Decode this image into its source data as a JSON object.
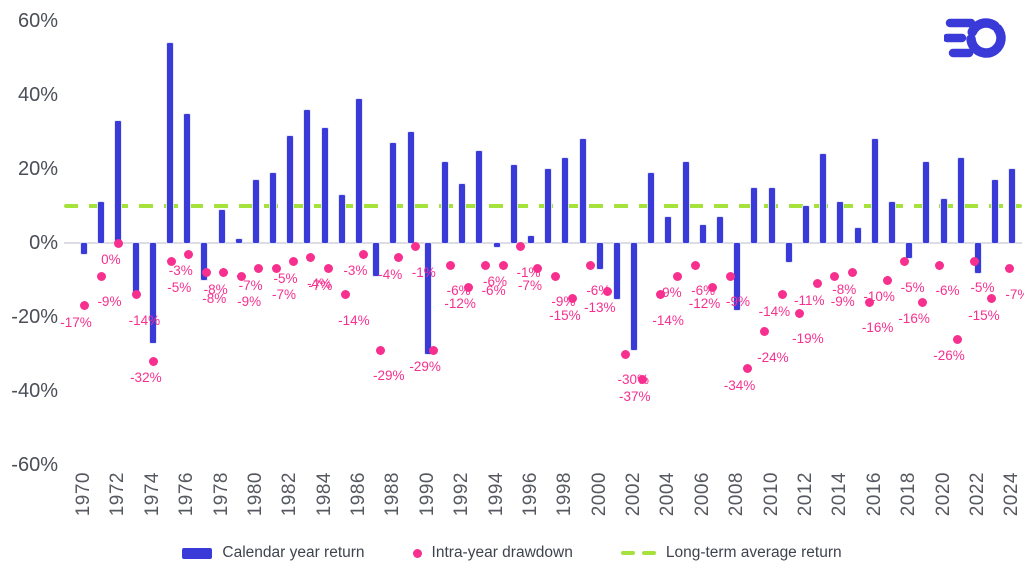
{
  "chart_data": {
    "type": "bar",
    "title": "",
    "year_start": 1970,
    "xticks": [
      "1970",
      "1972",
      "1974",
      "1976",
      "1978",
      "1980",
      "1982",
      "1984",
      "1986",
      "1988",
      "1990",
      "1992",
      "1994",
      "1996",
      "1998",
      "2000",
      "2002",
      "2004",
      "2006",
      "2008",
      "2010",
      "2012",
      "2014",
      "2016",
      "2018",
      "2020",
      "2022",
      "2024"
    ],
    "yticks": [
      "60%",
      "40%",
      "20%",
      "0%",
      "-20%",
      "-40%",
      "-60%"
    ],
    "ytick_values": [
      60,
      40,
      20,
      0,
      -20,
      -40,
      -60
    ],
    "ylim": [
      -60,
      60
    ],
    "grid": "zero-line-only",
    "legend_position": "bottom",
    "series": [
      {
        "name": "Calendar year return",
        "type": "bar",
        "color": "#3a3ad9",
        "values": [
          -3,
          11,
          33,
          -14,
          -27,
          54,
          35,
          -10,
          9,
          1,
          17,
          19,
          29,
          36,
          31,
          13,
          39,
          -9,
          27,
          30,
          -30,
          22,
          16,
          25,
          -1,
          21,
          2,
          20,
          23,
          28,
          -7,
          -15,
          -29,
          19,
          7,
          22,
          5,
          7,
          -18,
          15,
          15,
          -5,
          10,
          24,
          11,
          4,
          28,
          11,
          -4,
          22,
          12,
          23,
          -8,
          17,
          20
        ]
      },
      {
        "name": "Intra-year drawdown",
        "type": "scatter",
        "color": "#f7308f",
        "values": [
          -17,
          -9,
          0,
          -14,
          -32,
          -5,
          -3,
          -8,
          -8,
          -9,
          -7,
          -7,
          -5,
          -4,
          -7,
          -14,
          -3,
          -29,
          -4,
          -1,
          -29,
          -6,
          -12,
          -6,
          -6,
          -1,
          -7,
          -9,
          -15,
          -6,
          -13,
          -30,
          -37,
          -14,
          -9,
          -6,
          -12,
          -9,
          -34,
          -24,
          -14,
          -19,
          -11,
          -9,
          -8,
          -16,
          -10,
          -5,
          -16,
          -6,
          -26,
          -5,
          -15,
          -7,
          null
        ]
      },
      {
        "name": "Long-term average return",
        "type": "dashed-line",
        "color": "#a6e23c",
        "value": 10
      }
    ]
  },
  "legend": {
    "items": [
      {
        "label": "Calendar year return"
      },
      {
        "label": "Intra-year drawdown"
      },
      {
        "label": "Long-term average return"
      }
    ]
  },
  "brand": {
    "logo_color": "#3a3ad9"
  }
}
